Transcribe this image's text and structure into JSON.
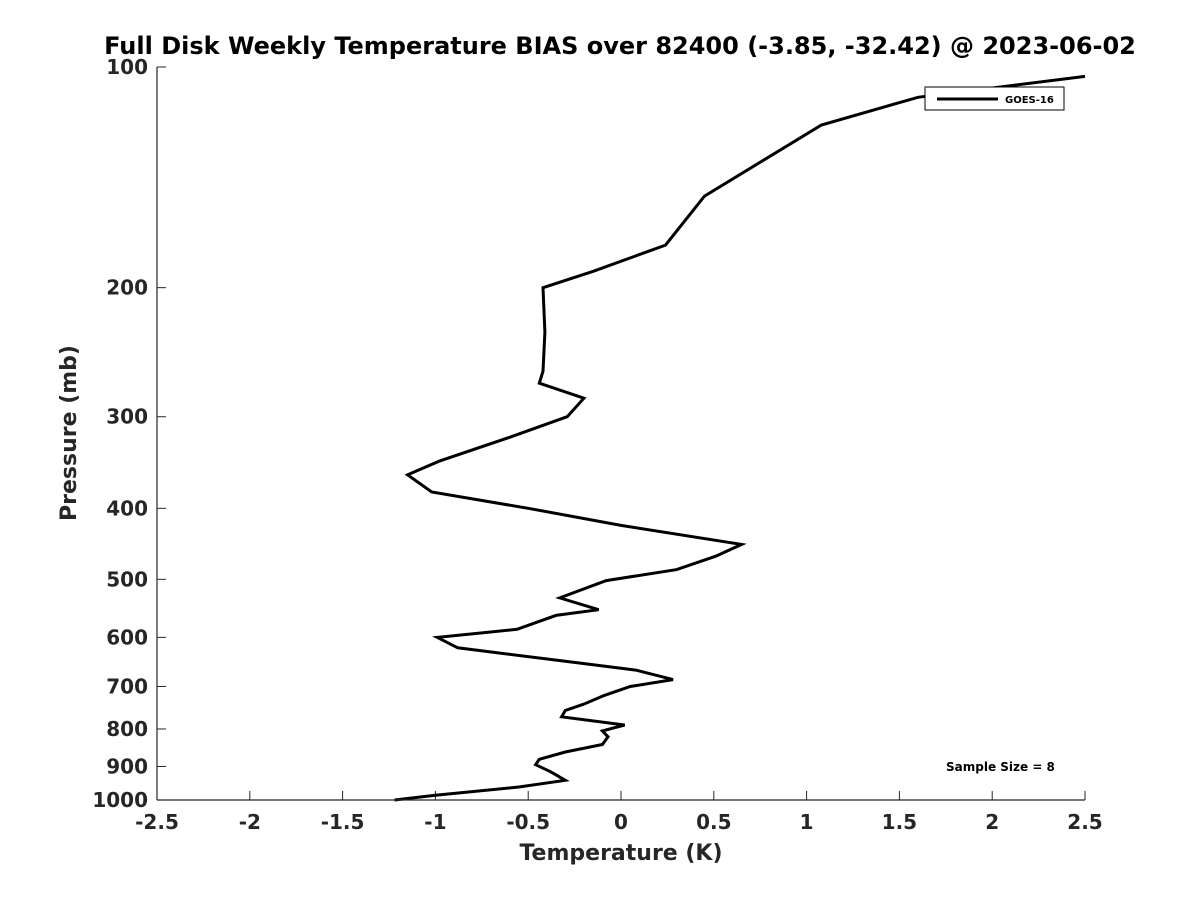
{
  "chart_data": {
    "type": "line",
    "title": "Full Disk Weekly Temperature BIAS over 82400 (-3.85, -32.42) @ 2023-06-02",
    "xlabel": "Temperature (K)",
    "ylabel": "Pressure (mb)",
    "xlim": [
      -2.5,
      2.5
    ],
    "ylim": [
      1000,
      100
    ],
    "yscale": "log",
    "y_reversed": true,
    "xticks": [
      -2.5,
      -2,
      -1.5,
      -1,
      -0.5,
      0,
      0.5,
      1,
      1.5,
      2,
      2.5
    ],
    "xtick_labels": [
      "-2.5",
      "-2",
      "-1.5",
      "-1",
      "-0.5",
      "0",
      "0.5",
      "1",
      "1.5",
      "2",
      "2.5"
    ],
    "yticks": [
      100,
      200,
      300,
      400,
      500,
      600,
      700,
      800,
      900,
      1000
    ],
    "ytick_labels": [
      "100",
      "200",
      "300",
      "400",
      "500",
      "600",
      "700",
      "800",
      "900",
      "1000"
    ],
    "grid": false,
    "legend_position": "top-right",
    "annotation": "Sample Size = 8",
    "series": [
      {
        "name": "GOES-16",
        "color": "#000000",
        "points": [
          [
            2.5,
            103
          ],
          [
            1.6,
            110
          ],
          [
            1.08,
            120
          ],
          [
            0.45,
            150
          ],
          [
            0.24,
            175
          ],
          [
            -0.15,
            190
          ],
          [
            -0.42,
            200
          ],
          [
            -0.41,
            230
          ],
          [
            -0.42,
            260
          ],
          [
            -0.44,
            270
          ],
          [
            -0.2,
            283
          ],
          [
            -0.29,
            300
          ],
          [
            -0.6,
            320
          ],
          [
            -0.98,
            345
          ],
          [
            -1.15,
            360
          ],
          [
            -1.02,
            380
          ],
          [
            -0.5,
            400
          ],
          [
            0.0,
            422
          ],
          [
            0.65,
            448
          ],
          [
            0.51,
            465
          ],
          [
            0.3,
            485
          ],
          [
            -0.08,
            502
          ],
          [
            -0.33,
            530
          ],
          [
            -0.12,
            550
          ],
          [
            -0.35,
            560
          ],
          [
            -0.56,
            585
          ],
          [
            -0.99,
            600
          ],
          [
            -0.88,
            620
          ],
          [
            -0.23,
            650
          ],
          [
            0.08,
            665
          ],
          [
            0.28,
            685
          ],
          [
            0.05,
            700
          ],
          [
            -0.09,
            720
          ],
          [
            -0.2,
            740
          ],
          [
            -0.3,
            755
          ],
          [
            -0.32,
            770
          ],
          [
            0.02,
            790
          ],
          [
            -0.1,
            805
          ],
          [
            -0.07,
            820
          ],
          [
            -0.1,
            840
          ],
          [
            -0.3,
            860
          ],
          [
            -0.44,
            880
          ],
          [
            -0.46,
            895
          ],
          [
            -0.38,
            915
          ],
          [
            -0.3,
            940
          ],
          [
            -0.55,
            960
          ],
          [
            -1.0,
            985
          ],
          [
            -1.22,
            1000
          ]
        ]
      }
    ]
  }
}
